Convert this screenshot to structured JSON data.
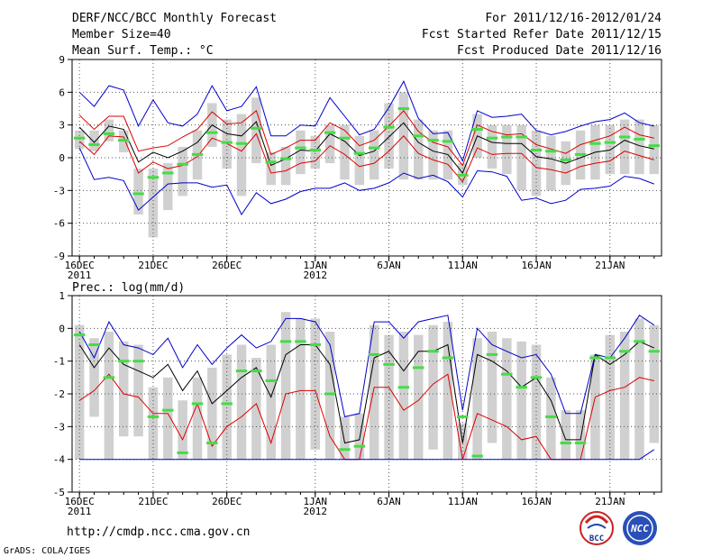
{
  "header": {
    "title": "DERF/NCC/BCC Monthly Forecast",
    "member_size": "Member Size=40",
    "variable": "Mean Surf. Temp.: °C",
    "period": "For 2011/12/16-2012/01/24",
    "refer_date": "Fcst Started Refer Date 2011/12/15",
    "produced_date": "Fcst Produced Date 2011/12/16"
  },
  "footer": {
    "url": "http://cmdp.ncc.cma.gov.cn",
    "credit": "GrADS: COLA/IGES",
    "logo_bcc": "BCC",
    "logo_ncc": "NCC"
  },
  "colors": {
    "box": "#d0d0d0",
    "median": "#44dd44",
    "mean": "#000000",
    "inner": "#dd0000",
    "outer": "#0000cc",
    "grid": "#555555"
  },
  "chart_data": [
    {
      "type": "box-line",
      "title": "Mean Surf. Temp.: °C",
      "x": [
        1,
        2,
        3,
        4,
        5,
        6,
        7,
        8,
        9,
        10,
        11,
        12,
        13,
        14,
        15,
        16,
        17,
        18,
        19,
        20,
        21,
        22,
        23,
        24,
        25,
        26,
        27,
        28,
        29,
        30,
        31,
        32,
        33,
        34,
        35,
        36,
        37,
        38,
        39,
        40
      ],
      "xlim": [
        0.5,
        40.5
      ],
      "ylim": [
        -9,
        9
      ],
      "yticks": [
        -9,
        -6,
        -3,
        0,
        3,
        6,
        9
      ],
      "xticks": [
        {
          "x": 1,
          "label": "16DEC",
          "sub": "2011"
        },
        {
          "x": 6,
          "label": "21DEC",
          "sub": ""
        },
        {
          "x": 11,
          "label": "26DEC",
          "sub": ""
        },
        {
          "x": 17,
          "label": "1JAN",
          "sub": "2012"
        },
        {
          "x": 22,
          "label": "6JAN",
          "sub": ""
        },
        {
          "x": 27,
          "label": "11JAN",
          "sub": ""
        },
        {
          "x": 32,
          "label": "16JAN",
          "sub": ""
        },
        {
          "x": 37,
          "label": "21JAN",
          "sub": ""
        }
      ],
      "box_low": [
        0.8,
        0.6,
        1.5,
        0.5,
        -5.2,
        -7.3,
        -4.8,
        -3.5,
        -2.0,
        1.0,
        -1.0,
        -3.5,
        -0.5,
        -2.5,
        -2.5,
        -1.5,
        -1.0,
        -0.5,
        -2.0,
        -2.5,
        -2.0,
        -1.0,
        -2.0,
        -2.0,
        -2.0,
        -2.0,
        -2.5,
        0.0,
        -1.0,
        -1.5,
        -3.0,
        -3.5,
        -3.0,
        -2.5,
        -2.0,
        -2.0,
        -1.5,
        -1.5,
        -1.5,
        -1.5
      ],
      "box_high": [
        2.5,
        2.5,
        3.5,
        2.5,
        -1.0,
        -1.0,
        -0.5,
        1.0,
        2.5,
        5.0,
        3.5,
        4.0,
        5.5,
        0.5,
        1.0,
        2.5,
        2.0,
        3.0,
        3.0,
        2.0,
        2.5,
        5.0,
        6.0,
        3.5,
        2.5,
        2.5,
        -0.5,
        4.0,
        3.0,
        3.0,
        3.0,
        2.5,
        2.0,
        1.5,
        2.5,
        3.0,
        3.0,
        3.5,
        3.5,
        3.0
      ],
      "median": [
        1.8,
        1.2,
        2.2,
        1.6,
        -3.3,
        -1.8,
        -1.4,
        -0.6,
        0.3,
        2.3,
        1.4,
        1.3,
        2.7,
        -0.4,
        -0.1,
        0.9,
        0.7,
        2.3,
        1.8,
        0.4,
        0.9,
        2.8,
        4.5,
        2.0,
        1.6,
        1.5,
        -1.6,
        2.6,
        1.8,
        1.9,
        1.9,
        0.7,
        0.6,
        -0.2,
        0.3,
        1.3,
        1.4,
        1.9,
        1.7,
        1.1
      ],
      "series": [
        {
          "name": "outer-high",
          "color": "#0000cc",
          "values": [
            6.0,
            4.7,
            6.6,
            6.2,
            2.9,
            5.3,
            3.2,
            2.9,
            4.0,
            6.6,
            4.3,
            4.7,
            6.5,
            2.0,
            2.0,
            3.0,
            2.9,
            5.5,
            3.8,
            2.1,
            2.6,
            4.6,
            7.0,
            3.6,
            2.2,
            2.3,
            -0.3,
            4.3,
            3.7,
            3.8,
            4.0,
            2.5,
            2.1,
            2.4,
            2.9,
            3.3,
            3.5,
            4.1,
            3.2,
            2.9
          ]
        },
        {
          "name": "inner-high",
          "color": "#dd0000",
          "values": [
            3.9,
            2.6,
            3.8,
            3.8,
            0.6,
            0.9,
            1.1,
            1.9,
            2.6,
            4.2,
            3.1,
            3.2,
            4.3,
            0.3,
            0.9,
            1.6,
            1.6,
            3.2,
            2.5,
            1.1,
            1.6,
            2.9,
            4.3,
            2.4,
            1.4,
            1.0,
            -0.7,
            3.0,
            2.4,
            2.1,
            2.2,
            1.2,
            0.8,
            0.4,
            1.2,
            1.6,
            2.0,
            2.8,
            2.1,
            1.8
          ]
        },
        {
          "name": "mean",
          "color": "#000000",
          "values": [
            2.8,
            1.4,
            2.9,
            2.6,
            -0.4,
            0.5,
            0.0,
            0.6,
            1.4,
            3.0,
            2.2,
            2.0,
            3.3,
            -0.7,
            -0.1,
            0.7,
            0.6,
            2.2,
            1.5,
            0.2,
            0.6,
            1.9,
            3.2,
            1.4,
            0.6,
            0.3,
            -1.4,
            2.0,
            1.4,
            1.3,
            1.3,
            0.1,
            -0.1,
            -0.5,
            0.0,
            0.5,
            0.7,
            1.6,
            1.1,
            0.8
          ]
        },
        {
          "name": "inner-low",
          "color": "#dd0000",
          "values": [
            1.5,
            0.3,
            2.0,
            1.9,
            -1.4,
            -0.4,
            -1.0,
            -0.7,
            0.1,
            1.8,
            1.3,
            0.6,
            2.2,
            -1.4,
            -1.2,
            -0.5,
            -0.3,
            1.1,
            0.3,
            -0.8,
            -0.5,
            0.6,
            2.0,
            0.4,
            -0.2,
            -0.6,
            -2.2,
            0.9,
            0.3,
            0.4,
            0.4,
            -0.9,
            -1.1,
            -1.4,
            -0.8,
            -0.5,
            -0.3,
            0.6,
            0.2,
            -0.2
          ]
        },
        {
          "name": "outer-low",
          "color": "#0000cc",
          "values": [
            0.9,
            -2.0,
            -1.8,
            -2.1,
            -4.8,
            -3.6,
            -2.4,
            -2.3,
            -2.3,
            -2.7,
            -2.5,
            -5.2,
            -3.2,
            -4.2,
            -3.8,
            -3.1,
            -2.8,
            -2.8,
            -2.3,
            -3.0,
            -2.8,
            -2.3,
            -1.4,
            -1.9,
            -1.6,
            -2.2,
            -3.6,
            -1.2,
            -1.3,
            -1.7,
            -3.9,
            -3.7,
            -4.2,
            -3.9,
            -2.9,
            -2.8,
            -2.6,
            -1.7,
            -1.9,
            -2.4
          ]
        }
      ]
    },
    {
      "type": "box-line",
      "title": "Prec.: log(mm/d)",
      "x": [
        1,
        2,
        3,
        4,
        5,
        6,
        7,
        8,
        9,
        10,
        11,
        12,
        13,
        14,
        15,
        16,
        17,
        18,
        19,
        20,
        21,
        22,
        23,
        24,
        25,
        26,
        27,
        28,
        29,
        30,
        31,
        32,
        33,
        34,
        35,
        36,
        37,
        38,
        39,
        40
      ],
      "xlim": [
        0.5,
        40.5
      ],
      "ylim": [
        -5,
        1
      ],
      "yticks": [
        -5,
        -4,
        -3,
        -2,
        -1,
        0,
        1
      ],
      "xticks": [
        {
          "x": 1,
          "label": "16DEC",
          "sub": "2011"
        },
        {
          "x": 6,
          "label": "21DEC",
          "sub": ""
        },
        {
          "x": 11,
          "label": "26DEC",
          "sub": ""
        },
        {
          "x": 17,
          "label": "1JAN",
          "sub": "2012"
        },
        {
          "x": 22,
          "label": "6JAN",
          "sub": ""
        },
        {
          "x": 27,
          "label": "11JAN",
          "sub": ""
        },
        {
          "x": 32,
          "label": "16JAN",
          "sub": ""
        },
        {
          "x": 37,
          "label": "21JAN",
          "sub": ""
        }
      ],
      "box_low": [
        -4.0,
        -2.7,
        -4.0,
        -3.3,
        -3.3,
        -4.0,
        -4.0,
        -4.0,
        -4.0,
        -4.0,
        -4.0,
        -4.0,
        -4.0,
        -4.0,
        -4.0,
        -4.0,
        -3.7,
        -4.0,
        -4.0,
        -4.0,
        -4.0,
        -4.0,
        -4.0,
        -4.0,
        -3.7,
        -4.0,
        -4.0,
        -4.0,
        -3.5,
        -4.0,
        -4.0,
        -4.0,
        -4.0,
        -4.0,
        -4.0,
        -4.0,
        -4.0,
        -4.0,
        -4.0,
        -3.5
      ],
      "box_high": [
        0.1,
        -0.3,
        -0.1,
        -0.4,
        -0.5,
        -1.8,
        -1.5,
        -2.2,
        -1.5,
        -1.2,
        -0.8,
        -0.5,
        -0.9,
        -0.5,
        0.5,
        0.3,
        0.3,
        -0.1,
        -2.7,
        -2.6,
        0.1,
        -0.2,
        -0.1,
        -0.2,
        0.1,
        0.2,
        -2.9,
        -0.3,
        -0.1,
        -0.3,
        -0.4,
        -0.5,
        -1.5,
        -2.5,
        -2.5,
        -0.8,
        -0.2,
        -0.1,
        0.3,
        0.1
      ],
      "median": [
        -0.2,
        -0.5,
        -1.5,
        -1.0,
        -1.0,
        -2.7,
        -2.5,
        -3.8,
        -2.3,
        -3.5,
        -2.3,
        -1.3,
        -1.3,
        -1.6,
        -0.4,
        -0.4,
        -0.5,
        -2.0,
        -3.7,
        -3.6,
        -0.8,
        -1.1,
        -1.8,
        -1.2,
        -0.7,
        -0.9,
        -2.7,
        -3.9,
        -0.8,
        -1.4,
        -1.8,
        -1.5,
        -2.7,
        -3.5,
        -3.5,
        -0.9,
        -0.9,
        -0.7,
        -0.4,
        -0.7
      ],
      "series": [
        {
          "name": "outer-high",
          "color": "#0000cc",
          "values": [
            -0.1,
            -0.9,
            0.2,
            -0.5,
            -0.6,
            -0.8,
            -0.3,
            -1.2,
            -0.5,
            -1.1,
            -0.6,
            -0.2,
            -0.6,
            -0.4,
            0.3,
            0.3,
            0.2,
            -0.5,
            -2.7,
            -2.6,
            0.2,
            0.2,
            -0.3,
            0.2,
            0.3,
            0.4,
            -2.5,
            0.0,
            -0.5,
            -0.7,
            -0.9,
            -0.8,
            -1.4,
            -2.6,
            -2.6,
            -0.8,
            -0.9,
            -0.3,
            0.4,
            0.1
          ]
        },
        {
          "name": "mean",
          "color": "#000000",
          "values": [
            -0.5,
            -1.2,
            -0.6,
            -1.1,
            -1.3,
            -1.5,
            -1.1,
            -1.9,
            -1.3,
            -2.3,
            -1.9,
            -1.5,
            -1.2,
            -2.1,
            -0.8,
            -0.5,
            -0.5,
            -1.1,
            -3.5,
            -3.4,
            -0.9,
            -0.7,
            -1.3,
            -0.7,
            -0.7,
            -0.5,
            -3.5,
            -0.8,
            -1.0,
            -1.3,
            -1.8,
            -1.5,
            -2.2,
            -3.4,
            -3.4,
            -0.8,
            -1.1,
            -0.8,
            -0.4,
            -0.6
          ]
        },
        {
          "name": "inner-high",
          "color": "#dd0000",
          "values": [
            -2.2,
            -1.9,
            -1.4,
            -2.0,
            -2.1,
            -2.6,
            -2.6,
            -3.4,
            -2.3,
            -3.6,
            -3.0,
            -2.7,
            -2.3,
            -3.5,
            -2.0,
            -1.9,
            -1.9,
            -3.3,
            -4.0,
            -4.0,
            -1.8,
            -1.8,
            -2.5,
            -2.2,
            -1.7,
            -1.4,
            -4.0,
            -2.6,
            -2.8,
            -3.0,
            -3.4,
            -3.3,
            -4.0,
            -4.0,
            -4.0,
            -2.1,
            -1.9,
            -1.8,
            -1.5,
            -1.6
          ]
        },
        {
          "name": "outer-low",
          "color": "#0000cc",
          "values": [
            -4.0,
            -4.0,
            -4.0,
            -4.0,
            -4.0,
            -4.0,
            -4.0,
            -4.0,
            -4.0,
            -4.0,
            -4.0,
            -4.0,
            -4.0,
            -4.0,
            -4.0,
            -4.0,
            -4.0,
            -4.0,
            -4.0,
            -4.0,
            -4.0,
            -4.0,
            -4.0,
            -4.0,
            -4.0,
            -4.0,
            -4.0,
            -4.0,
            -4.0,
            -4.0,
            -4.0,
            -4.0,
            -4.0,
            -4.0,
            -4.0,
            -4.0,
            -4.0,
            -4.0,
            -4.0,
            -3.7
          ]
        }
      ]
    }
  ]
}
